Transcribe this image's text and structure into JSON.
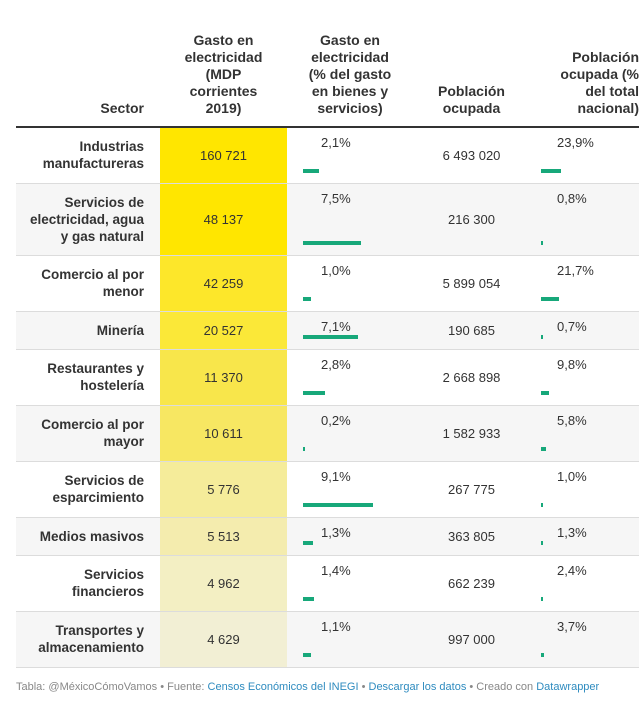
{
  "headers": {
    "sector": "Sector",
    "gasto_mdp": [
      "Gasto en",
      "electricidad",
      "(MDP",
      "corrientes",
      "2019)"
    ],
    "gasto_pct": [
      "Gasto en",
      "electricidad",
      "(% del gasto",
      "en bienes y",
      "servicios)"
    ],
    "poblacion": [
      "Población",
      "ocupada"
    ],
    "poblacion_pct": [
      "Población",
      "ocupada (%",
      "del total",
      "nacional)"
    ]
  },
  "rows": [
    {
      "sector": [
        "Industrias",
        "manufactureras"
      ],
      "gasto_mdp": "160 721",
      "gasto_pct": "2,1%",
      "gasto_pct_value": 2.1,
      "poblacion": "6 493 020",
      "poblacion_pct": "23,9%",
      "poblacion_pct_value": 23.9,
      "heat": "#ffe600"
    },
    {
      "sector": [
        "Servicios de",
        "electricidad, agua",
        "y gas natural"
      ],
      "gasto_mdp": "48 137",
      "gasto_pct": "7,5%",
      "gasto_pct_value": 7.5,
      "poblacion": "216 300",
      "poblacion_pct": "0,8%",
      "poblacion_pct_value": 0.8,
      "heat": "#ffe600"
    },
    {
      "sector": [
        "Comercio al por",
        "menor"
      ],
      "gasto_mdp": "42 259",
      "gasto_pct": "1,0%",
      "gasto_pct_value": 1.0,
      "poblacion": "5 899 054",
      "poblacion_pct": "21,7%",
      "poblacion_pct_value": 21.7,
      "heat": "#fde72a"
    },
    {
      "sector": [
        "Minería"
      ],
      "gasto_mdp": "20 527",
      "gasto_pct": "7,1%",
      "gasto_pct_value": 7.1,
      "poblacion": "190 685",
      "poblacion_pct": "0,7%",
      "poblacion_pct_value": 0.7,
      "heat": "#fbe838"
    },
    {
      "sector": [
        "Restaurantes y",
        "hostelería"
      ],
      "gasto_mdp": "11 370",
      "gasto_pct": "2,8%",
      "gasto_pct_value": 2.8,
      "poblacion": "2 668 898",
      "poblacion_pct": "9,8%",
      "poblacion_pct_value": 9.8,
      "heat": "#f8e64b"
    },
    {
      "sector": [
        "Comercio al por",
        "mayor"
      ],
      "gasto_mdp": "10 611",
      "gasto_pct": "0,2%",
      "gasto_pct_value": 0.2,
      "poblacion": "1 582 933",
      "poblacion_pct": "5,8%",
      "poblacion_pct_value": 5.8,
      "heat": "#f7e762"
    },
    {
      "sector": [
        "Servicios de",
        "esparcimiento"
      ],
      "gasto_mdp": "5 776",
      "gasto_pct": "9,1%",
      "gasto_pct_value": 9.1,
      "poblacion": "267 775",
      "poblacion_pct": "1,0%",
      "poblacion_pct_value": 1.0,
      "heat": "#f5ec9a"
    },
    {
      "sector": [
        "Medios masivos"
      ],
      "gasto_mdp": "5 513",
      "gasto_pct": "1,3%",
      "gasto_pct_value": 1.3,
      "poblacion": "363 805",
      "poblacion_pct": "1,3%",
      "poblacion_pct_value": 1.3,
      "heat": "#f4ecae"
    },
    {
      "sector": [
        "Servicios",
        "financieros"
      ],
      "gasto_mdp": "4 962",
      "gasto_pct": "1,4%",
      "gasto_pct_value": 1.4,
      "poblacion": "662 239",
      "poblacion_pct": "2,4%",
      "poblacion_pct_value": 2.4,
      "heat": "#f3efc3"
    },
    {
      "sector": [
        "Transportes y",
        "almacenamiento"
      ],
      "gasto_mdp": "4 629",
      "gasto_pct": "1,1%",
      "gasto_pct_value": 1.1,
      "poblacion": "997 000",
      "poblacion_pct": "3,7%",
      "poblacion_pct_value": 3.7,
      "heat": "#f2efd4"
    }
  ],
  "footer": {
    "tabla": "Tabla: @MéxicoCómoVamos",
    "sep1": " • ",
    "fuente": "Fuente: ",
    "fuente_link": "Censos Económicos del INEGI",
    "sep2": " • ",
    "descargar": "Descargar los datos",
    "sep3": " • ",
    "creado": "Creado con ",
    "datawrapper": "Datawrapper"
  },
  "colors": {
    "bar": "#17a87a",
    "header_rule": "#333333",
    "link": "#2e8bbf"
  }
}
